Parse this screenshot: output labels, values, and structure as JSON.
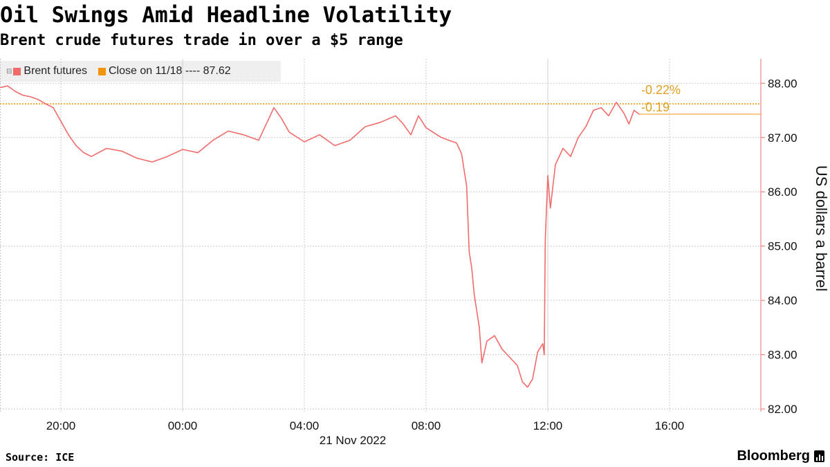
{
  "title": "Oil Swings Amid Headline Volatility",
  "subtitle": "Brent crude futures trade in over a $5 range",
  "source": "Source: ICE",
  "brand": "Bloomberg",
  "legend": {
    "toggle_icon": "collapse-icon",
    "items": [
      {
        "label": "Brent futures",
        "color": "#f26b6b"
      },
      {
        "label": "Close on 11/18 ---- 87.62",
        "color": "#f0950d"
      }
    ]
  },
  "colors": {
    "series": "#f26b6b",
    "reference": "#f0950d",
    "annotation": "#e0a020",
    "axis": "#f26b6b",
    "grid": "#c8c8c8"
  },
  "chart_data": {
    "type": "line",
    "ylabel": "US dollars a barrel",
    "xlabel": "21 Nov 2022",
    "ylim": [
      81.95,
      88.45
    ],
    "x_range": [
      "2022-11-20T18:00",
      "2022-11-21T19:00"
    ],
    "x_ticks": [
      {
        "label": "20:00",
        "t": "2022-11-20T20:00"
      },
      {
        "label": "00:00",
        "t": "2022-11-21T00:00"
      },
      {
        "label": "04:00",
        "t": "2022-11-21T04:00"
      },
      {
        "label": "08:00",
        "t": "2022-11-21T08:00"
      },
      {
        "label": "12:00",
        "t": "2022-11-21T12:00"
      },
      {
        "label": "16:00",
        "t": "2022-11-21T16:00"
      }
    ],
    "y_ticks": [
      {
        "label": "82.00",
        "value": 82
      },
      {
        "label": "83.00",
        "value": 83
      },
      {
        "label": "84.00",
        "value": 84
      },
      {
        "label": "85.00",
        "value": 85
      },
      {
        "label": "86.00",
        "value": 86
      },
      {
        "label": "87.00",
        "value": 87
      },
      {
        "label": "88.00",
        "value": 88
      }
    ],
    "grid": true,
    "reference_line": {
      "name": "Close on 11/18",
      "value": 87.62,
      "style": "dotted"
    },
    "last_value_line": {
      "value": 87.43
    },
    "annotations": [
      {
        "text": "-0.22%",
        "anchor_value": 87.62
      },
      {
        "text": "-0.19",
        "anchor_value": 87.43
      }
    ],
    "series": [
      {
        "name": "Brent futures",
        "points": [
          [
            "2022-11-20T18:00",
            87.92
          ],
          [
            "2022-11-20T18:15",
            87.95
          ],
          [
            "2022-11-20T18:30",
            87.85
          ],
          [
            "2022-11-20T18:45",
            87.78
          ],
          [
            "2022-11-20T19:00",
            87.75
          ],
          [
            "2022-11-20T19:15",
            87.7
          ],
          [
            "2022-11-20T19:30",
            87.62
          ],
          [
            "2022-11-20T19:45",
            87.55
          ],
          [
            "2022-11-20T20:00",
            87.3
          ],
          [
            "2022-11-20T20:15",
            87.05
          ],
          [
            "2022-11-20T20:30",
            86.85
          ],
          [
            "2022-11-20T20:45",
            86.72
          ],
          [
            "2022-11-20T21:00",
            86.65
          ],
          [
            "2022-11-20T21:30",
            86.8
          ],
          [
            "2022-11-20T22:00",
            86.75
          ],
          [
            "2022-11-20T22:30",
            86.62
          ],
          [
            "2022-11-20T23:00",
            86.55
          ],
          [
            "2022-11-20T23:30",
            86.65
          ],
          [
            "2022-11-21T00:00",
            86.78
          ],
          [
            "2022-11-21T00:30",
            86.72
          ],
          [
            "2022-11-21T01:00",
            86.95
          ],
          [
            "2022-11-21T01:30",
            87.12
          ],
          [
            "2022-11-21T02:00",
            87.05
          ],
          [
            "2022-11-21T02:30",
            86.95
          ],
          [
            "2022-11-21T02:45",
            87.25
          ],
          [
            "2022-11-21T03:00",
            87.55
          ],
          [
            "2022-11-21T03:15",
            87.35
          ],
          [
            "2022-11-21T03:30",
            87.1
          ],
          [
            "2022-11-21T04:00",
            86.92
          ],
          [
            "2022-11-21T04:30",
            87.05
          ],
          [
            "2022-11-21T05:00",
            86.85
          ],
          [
            "2022-11-21T05:30",
            86.95
          ],
          [
            "2022-11-21T06:00",
            87.2
          ],
          [
            "2022-11-21T06:30",
            87.28
          ],
          [
            "2022-11-21T07:00",
            87.4
          ],
          [
            "2022-11-21T07:15",
            87.25
          ],
          [
            "2022-11-21T07:30",
            87.05
          ],
          [
            "2022-11-21T07:45",
            87.4
          ],
          [
            "2022-11-21T08:00",
            87.18
          ],
          [
            "2022-11-21T08:30",
            87.0
          ],
          [
            "2022-11-21T08:45",
            86.95
          ],
          [
            "2022-11-21T09:00",
            86.9
          ],
          [
            "2022-11-21T09:10",
            86.7
          ],
          [
            "2022-11-21T09:20",
            86.1
          ],
          [
            "2022-11-21T09:25",
            84.9
          ],
          [
            "2022-11-21T09:30",
            84.6
          ],
          [
            "2022-11-21T09:35",
            84.1
          ],
          [
            "2022-11-21T09:45",
            83.5
          ],
          [
            "2022-11-21T09:50",
            82.85
          ],
          [
            "2022-11-21T10:00",
            83.25
          ],
          [
            "2022-11-21T10:15",
            83.35
          ],
          [
            "2022-11-21T10:30",
            83.1
          ],
          [
            "2022-11-21T10:45",
            82.95
          ],
          [
            "2022-11-21T11:00",
            82.8
          ],
          [
            "2022-11-21T11:10",
            82.5
          ],
          [
            "2022-11-21T11:20",
            82.4
          ],
          [
            "2022-11-21T11:30",
            82.55
          ],
          [
            "2022-11-21T11:40",
            83.05
          ],
          [
            "2022-11-21T11:50",
            83.2
          ],
          [
            "2022-11-21T11:53",
            83.0
          ],
          [
            "2022-11-21T11:55",
            85.1
          ],
          [
            "2022-11-21T12:00",
            86.3
          ],
          [
            "2022-11-21T12:05",
            85.7
          ],
          [
            "2022-11-21T12:15",
            86.5
          ],
          [
            "2022-11-21T12:30",
            86.8
          ],
          [
            "2022-11-21T12:45",
            86.65
          ],
          [
            "2022-11-21T13:00",
            87.0
          ],
          [
            "2022-11-21T13:15",
            87.2
          ],
          [
            "2022-11-21T13:30",
            87.5
          ],
          [
            "2022-11-21T13:45",
            87.55
          ],
          [
            "2022-11-21T14:00",
            87.4
          ],
          [
            "2022-11-21T14:15",
            87.65
          ],
          [
            "2022-11-21T14:30",
            87.45
          ],
          [
            "2022-11-21T14:40",
            87.25
          ],
          [
            "2022-11-21T14:50",
            87.5
          ],
          [
            "2022-11-21T15:00",
            87.43
          ]
        ]
      }
    ]
  }
}
